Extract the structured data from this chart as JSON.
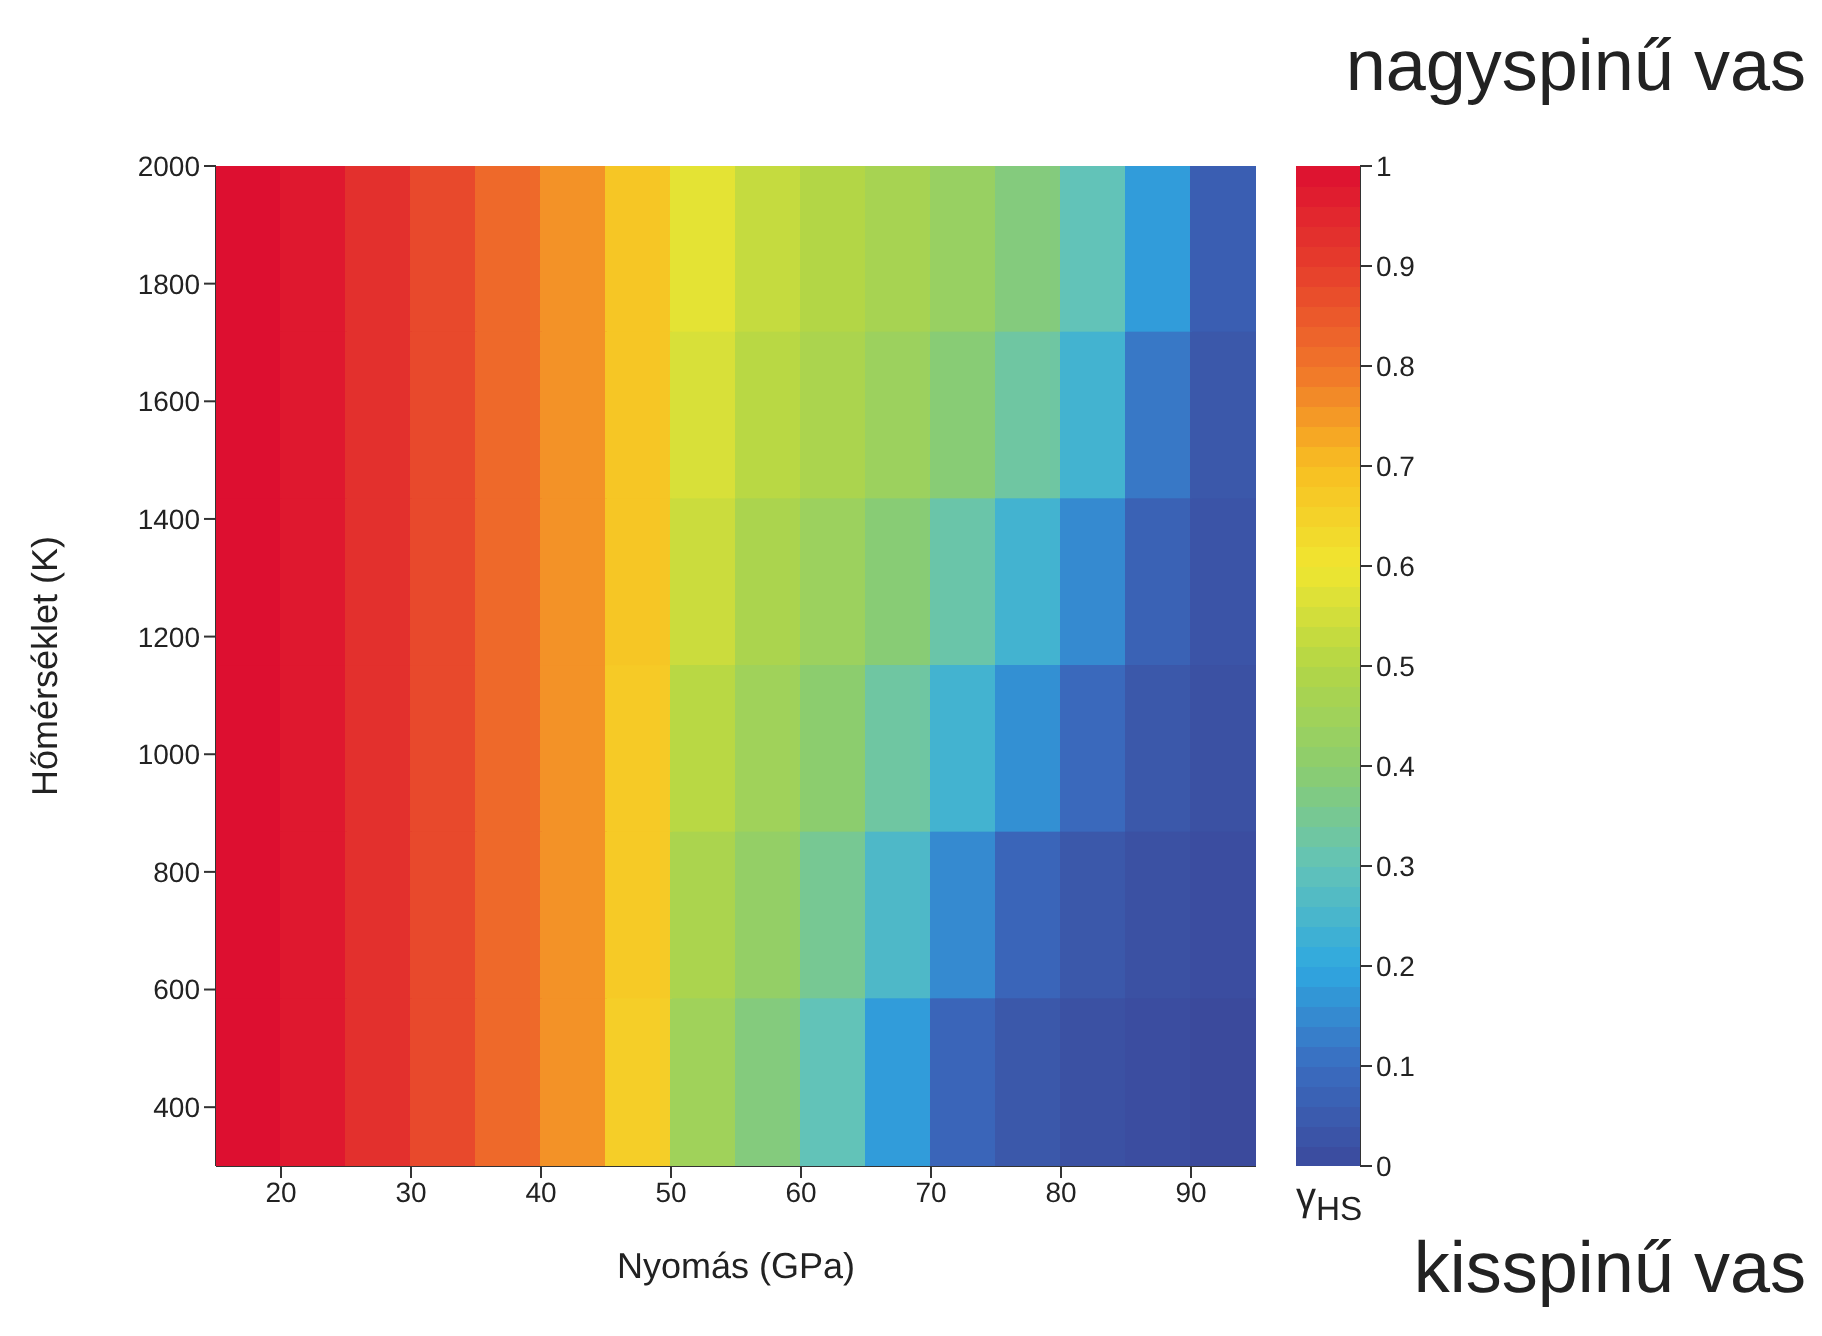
{
  "chart_data": {
    "type": "heatmap",
    "xlabel": "Nyomás (GPa)",
    "ylabel": "Hőmérséklet  (K)",
    "clabel": "γ$_{HS}$",
    "annotations": [
      "nagyspinű vas",
      "kisspinű vas"
    ],
    "x": [
      17.5,
      22.5,
      27.5,
      32.5,
      37.5,
      42.5,
      47.5,
      52.5,
      57.5,
      62.5,
      67.5,
      72.5,
      77.5,
      82.5,
      87.5,
      92.5
    ],
    "y": [
      1858.3,
      1575,
      1291.7,
      1008.3,
      725,
      441.7
    ],
    "xlim": [
      15,
      95
    ],
    "xticks": [
      20,
      30,
      40,
      50,
      60,
      70,
      80,
      90
    ],
    "ylim": [
      300,
      2000
    ],
    "yticks": [
      400,
      600,
      800,
      1000,
      1200,
      1400,
      1600,
      1800,
      2000
    ],
    "clim": [
      0,
      1
    ],
    "cticks": [
      0,
      0.1,
      0.2,
      0.3,
      0.4,
      0.5,
      0.6,
      0.7,
      0.8,
      0.9,
      1
    ],
    "cells": [
      [
        1,
        0.98,
        0.93,
        0.88,
        0.82,
        0.76,
        0.68,
        0.58,
        0.53,
        0.5,
        0.47,
        0.43,
        0.38,
        0.3,
        0.18,
        0.06
      ],
      [
        1,
        0.98,
        0.93,
        0.88,
        0.82,
        0.76,
        0.68,
        0.56,
        0.51,
        0.48,
        0.44,
        0.39,
        0.33,
        0.24,
        0.12,
        0.04
      ],
      [
        1,
        0.98,
        0.93,
        0.88,
        0.82,
        0.76,
        0.68,
        0.54,
        0.48,
        0.44,
        0.39,
        0.32,
        0.24,
        0.15,
        0.07,
        0.03
      ],
      [
        1,
        0.98,
        0.93,
        0.88,
        0.82,
        0.76,
        0.67,
        0.51,
        0.45,
        0.4,
        0.33,
        0.24,
        0.16,
        0.09,
        0.04,
        0.02
      ],
      [
        1,
        0.98,
        0.93,
        0.88,
        0.82,
        0.76,
        0.67,
        0.48,
        0.42,
        0.35,
        0.26,
        0.15,
        0.08,
        0.04,
        0.02,
        0.01
      ],
      [
        1,
        0.98,
        0.93,
        0.88,
        0.82,
        0.76,
        0.66,
        0.45,
        0.38,
        0.3,
        0.18,
        0.08,
        0.04,
        0.02,
        0.01,
        0
      ]
    ]
  }
}
